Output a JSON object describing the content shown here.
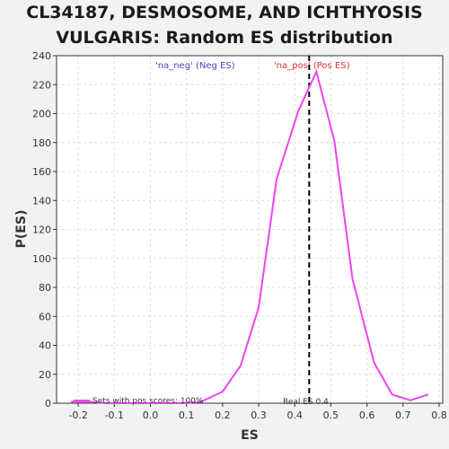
{
  "chart_data": {
    "type": "line",
    "title_line1": "CL34187, DESMOSOME, AND ICHTHYOSIS",
    "title_line2": "VULGARIS: Random ES distribution",
    "xlabel": "ES",
    "ylabel": "P(ES)",
    "xlim": [
      -0.26,
      0.81
    ],
    "ylim": [
      0,
      240
    ],
    "x_ticks": [
      -0.2,
      -0.1,
      0.0,
      0.1,
      0.2,
      0.3,
      0.4,
      0.5,
      0.6,
      0.7,
      0.8
    ],
    "x_tick_labels": [
      "-0.2",
      "-0.1",
      "0.0",
      "0.1",
      "0.2",
      "0.3",
      "0.4",
      "0.5",
      "0.6",
      "0.7",
      "0.8"
    ],
    "y_ticks": [
      0,
      20,
      40,
      60,
      80,
      100,
      120,
      140,
      160,
      180,
      200,
      220,
      240
    ],
    "y_tick_labels": [
      "0",
      "20",
      "40",
      "60",
      "80",
      "100",
      "120",
      "140",
      "160",
      "180",
      "200",
      "220",
      "240"
    ],
    "grid": true,
    "line_color": "#ee44ee",
    "series": [
      {
        "x": [
          -0.22,
          -0.17,
          -0.12,
          -0.07,
          -0.02,
          0.04,
          0.09,
          0.14,
          0.2,
          0.25,
          0.3,
          0.35,
          0.41,
          0.46,
          0.51,
          0.56,
          0.62,
          0.67,
          0.72,
          0.77
        ],
        "y": [
          1,
          1,
          0,
          0,
          0,
          0,
          0,
          1,
          8,
          26,
          66,
          155,
          202,
          229,
          181,
          86,
          28,
          6,
          2,
          6
        ]
      }
    ],
    "real_es": 0.44,
    "real_es_label": "Real ES 0.4",
    "neg_label": "'na_neg' (Neg ES)",
    "neg_color": "#4444cc",
    "pos_label": "'na_pos' (Pos ES)",
    "pos_color": "#dd3333",
    "legend_label": "Sets with pos scores: 100%"
  }
}
